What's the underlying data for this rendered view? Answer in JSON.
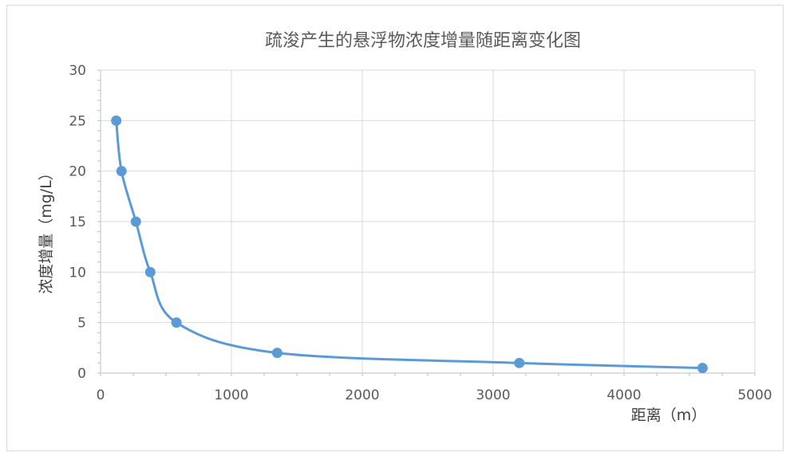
{
  "chart_data": {
    "type": "scatter",
    "title": "疏浚产生的悬浮物浓度增量随距离变化图",
    "xlabel": "距离（m）",
    "ylabel": "浓度增量（mg/L）",
    "xlim": [
      0,
      5000
    ],
    "ylim": [
      0,
      30
    ],
    "x_ticks": [
      "0",
      "1000",
      "2000",
      "3000",
      "4000",
      "5000"
    ],
    "y_ticks": [
      "0",
      "5",
      "10",
      "15",
      "20",
      "25",
      "30"
    ],
    "grid": true,
    "smooth_line": true,
    "series": [
      {
        "x": [
          120,
          160,
          270,
          380,
          580,
          1350,
          3200,
          4600
        ],
        "y": [
          25,
          20,
          15,
          10,
          5,
          2,
          1,
          0.5
        ],
        "color": "#5b9bd5"
      }
    ]
  }
}
